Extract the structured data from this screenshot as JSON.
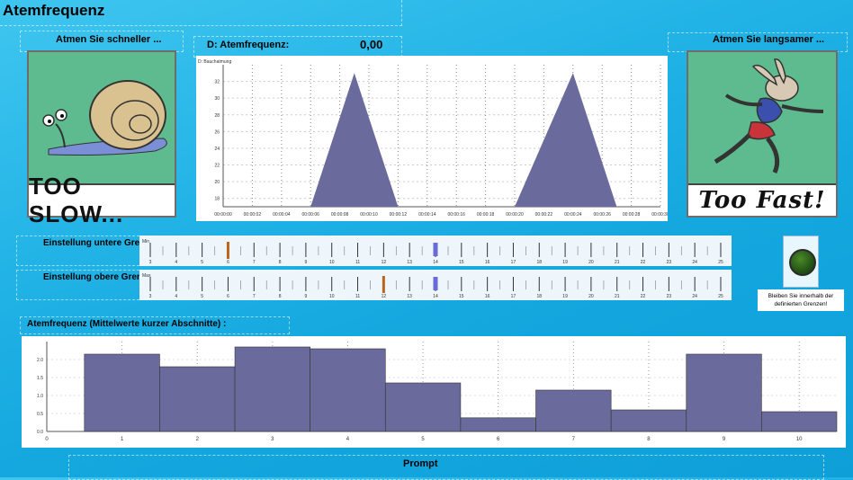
{
  "title": "Atemfrequenz",
  "left_panel": {
    "heading": "Atmen Sie schneller ...",
    "caption": "TOO SLOW...",
    "picture": "snail"
  },
  "right_panel": {
    "heading": "Atmen Sie langsamer ...",
    "caption": "Too Fast!",
    "picture": "running-rabbit"
  },
  "frequency_display": {
    "label": "D: Atemfrequenz:",
    "value": "0,00"
  },
  "breath_chart": {
    "label": "D: Bauchatmung",
    "y_ticks": [
      "18",
      "20",
      "22",
      "24",
      "26",
      "28",
      "30",
      "32"
    ],
    "x_ticks": [
      "00:00:00",
      "00:00:02",
      "00:00:04",
      "00:00:06",
      "00:00:08",
      "00:00:10",
      "00:00:12",
      "00:00:14",
      "00:00:16",
      "00:00:18",
      "00:00:20",
      "00:00:22",
      "00:00:24",
      "00:00:26",
      "00:00:28",
      "00:00:30"
    ],
    "series_color": "#6a6a9c"
  },
  "lower_limit": {
    "label": "Einstellung untere Grenze:",
    "tag": "Min",
    "ticks": [
      "3",
      "4",
      "5",
      "6",
      "7",
      "8",
      "9",
      "10",
      "11",
      "12",
      "13",
      "14",
      "15",
      "16",
      "17",
      "18",
      "19",
      "20",
      "21",
      "22",
      "23",
      "24",
      "25"
    ],
    "value": 6,
    "marker": 14
  },
  "upper_limit": {
    "label": "Einstellung obere Grenze:",
    "tag": "Max",
    "ticks": [
      "3",
      "4",
      "5",
      "6",
      "7",
      "8",
      "9",
      "10",
      "11",
      "12",
      "13",
      "14",
      "15",
      "16",
      "17",
      "18",
      "19",
      "20",
      "21",
      "22",
      "23",
      "24",
      "25"
    ],
    "value": 12,
    "marker": 14
  },
  "status": {
    "message": "Bleiben Sie innerhalb der definierten Grenzen!",
    "led_color": "#1f4a12"
  },
  "histogram": {
    "label": "Atemfrequenz (Mittelwerte kurzer Abschnitte) :",
    "y_ticks": [
      "0.0",
      "0.5",
      "1.0",
      "1.5",
      "2.0"
    ],
    "x_ticks": [
      "0",
      "1",
      "2",
      "3",
      "4",
      "5",
      "6",
      "7",
      "8",
      "9",
      "10"
    ]
  },
  "prompt_label": "Prompt",
  "colors": {
    "bar": "#6a6a9c",
    "slider_value": "#b8651e",
    "slider_marker": "#6a6ad8"
  },
  "chart_data": [
    {
      "type": "area",
      "title": "",
      "ylabel": "D: Bauchatmung",
      "x": [
        "00:00:06",
        "00:00:09",
        "00:00:12",
        "00:00:20",
        "00:00:24",
        "00:00:27"
      ],
      "series": [
        {
          "values": [
            17,
            33,
            17,
            17,
            33,
            17
          ]
        }
      ],
      "xlim": [
        "00:00:00",
        "00:00:30"
      ],
      "ylim": [
        17,
        34
      ],
      "grid": true
    },
    {
      "type": "bar",
      "title": "",
      "categories": [
        "1",
        "2",
        "3",
        "4",
        "5",
        "6",
        "7",
        "8",
        "9",
        "10"
      ],
      "values": [
        2.15,
        1.8,
        2.35,
        2.3,
        1.35,
        0.38,
        1.15,
        0.6,
        2.15,
        0.55
      ],
      "ylim": [
        0,
        2.5
      ],
      "grid": true
    }
  ]
}
